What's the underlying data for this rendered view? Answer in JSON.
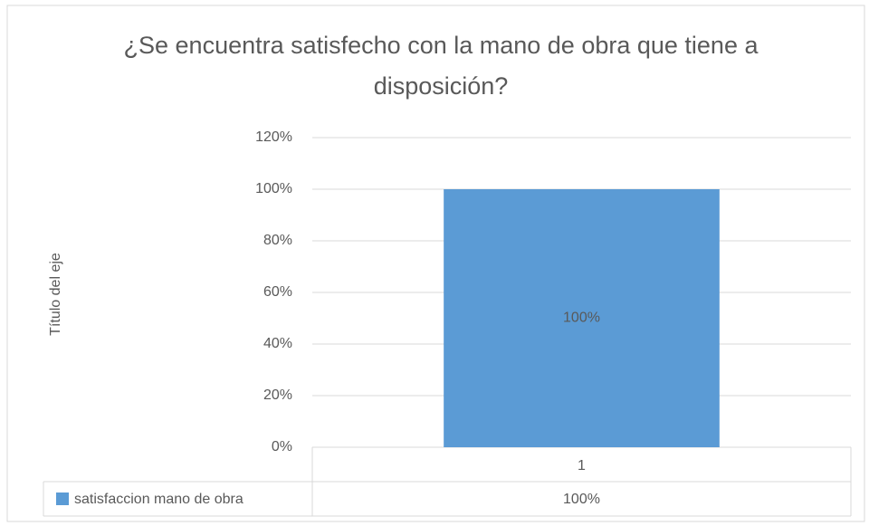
{
  "chart_data": {
    "type": "bar",
    "title": "¿Se encuentra satisfecho con la mano de obra que tiene a disposición?",
    "y_axis_label": "Título del eje",
    "categories": [
      "1"
    ],
    "series": [
      {
        "name": "satisfaccion mano de obra",
        "color": "#5b9bd5",
        "values": [
          100
        ],
        "value_labels": [
          "100%"
        ]
      }
    ],
    "ylim": [
      0,
      120
    ],
    "yticks": [
      {
        "value": 0,
        "label": "0%"
      },
      {
        "value": 20,
        "label": "20%"
      },
      {
        "value": 40,
        "label": "40%"
      },
      {
        "value": 60,
        "label": "60%"
      },
      {
        "value": 80,
        "label": "80%"
      },
      {
        "value": 100,
        "label": "100%"
      },
      {
        "value": 120,
        "label": "120%"
      }
    ],
    "grid": true
  }
}
